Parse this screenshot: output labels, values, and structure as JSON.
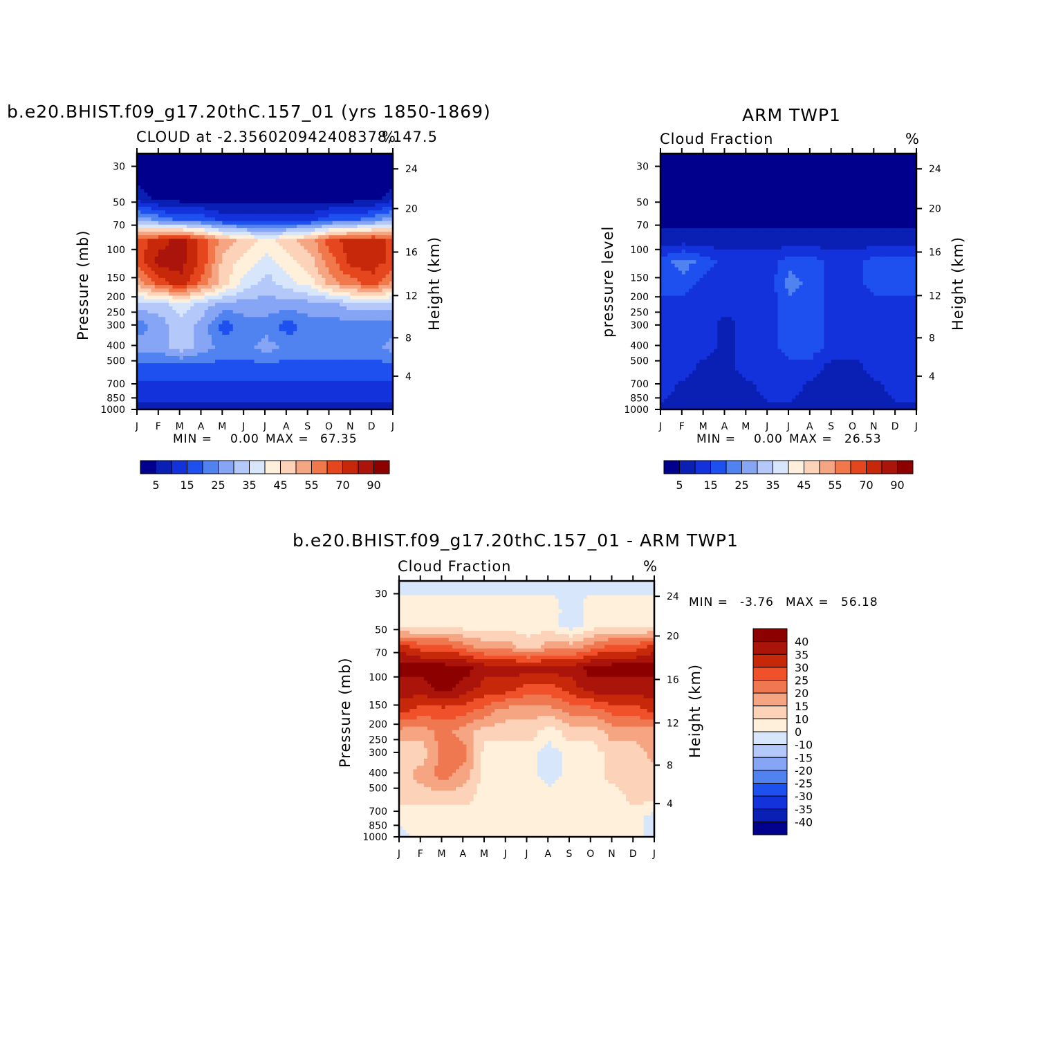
{
  "chart_data": [
    {
      "type": "heatmap",
      "panel": "model",
      "title": "b.e20.BHIST.f09_g17.20thC.157_01 (yrs 1850-1869)",
      "subtitle_left": "CLOUD at -2.356020942408378,147.5",
      "units": "%",
      "ylabel": "Pressure (mb)",
      "y2label": "Height (km)",
      "x_ticks": [
        "J",
        "F",
        "M",
        "A",
        "M",
        "J",
        "J",
        "A",
        "S",
        "O",
        "N",
        "D",
        "J"
      ],
      "y_ticks": [
        "30",
        "50",
        "70",
        "100",
        "150",
        "200",
        "250",
        "300",
        "400",
        "500",
        "700",
        "850",
        "1000"
      ],
      "y2_ticks": [
        "24",
        "20",
        "16",
        "12",
        "8",
        "4"
      ],
      "min_label": "MIN =",
      "min_value": "0.00",
      "max_label": "MAX =",
      "max_value": "67.35",
      "colorbar_labels": [
        "5",
        "15",
        "25",
        "35",
        "45",
        "55",
        "70",
        "90"
      ],
      "colorbar_colors": [
        "#00008c",
        "#0a1fb4",
        "#1432dc",
        "#1e50f0",
        "#5082f0",
        "#87a5f5",
        "#b4c8fa",
        "#d7e6fa",
        "#fff0dc",
        "#fcd2b9",
        "#f6a582",
        "#f0784b",
        "#e6461e",
        "#c8280a",
        "#aa140a",
        "#8c0000"
      ],
      "levels_grid": [
        [
          0,
          0,
          0,
          0,
          0,
          0,
          0,
          0,
          0,
          0,
          0,
          0,
          0
        ],
        [
          0,
          0,
          0,
          0,
          0,
          0,
          0,
          0,
          0,
          0,
          0,
          0,
          0
        ],
        [
          1,
          0,
          0,
          0,
          0,
          0,
          0,
          0,
          0,
          0,
          0,
          0,
          1
        ],
        [
          5,
          4,
          3,
          3,
          2,
          2,
          2,
          2,
          2,
          3,
          3,
          4,
          5
        ],
        [
          12,
          13,
          14,
          12,
          10,
          9,
          8,
          9,
          10,
          12,
          13,
          13,
          12
        ],
        [
          12,
          14,
          14,
          12,
          9,
          8,
          7,
          8,
          9,
          11,
          13,
          13,
          12
        ],
        [
          10,
          12,
          13,
          11,
          9,
          7,
          6,
          7,
          8,
          10,
          11,
          12,
          10
        ],
        [
          6,
          6,
          7,
          6,
          5,
          5,
          5,
          5,
          5,
          5,
          6,
          6,
          6
        ],
        [
          4,
          5,
          6,
          5,
          3,
          4,
          4,
          3,
          4,
          4,
          4,
          4,
          4
        ],
        [
          5,
          5,
          6,
          5,
          4,
          4,
          5,
          4,
          4,
          4,
          4,
          4,
          5
        ],
        [
          3,
          3,
          3,
          3,
          3,
          3,
          3,
          3,
          3,
          3,
          3,
          3,
          3
        ],
        [
          2,
          2,
          2,
          2,
          2,
          2,
          2,
          2,
          2,
          2,
          2,
          2,
          2
        ],
        [
          1,
          1,
          1,
          1,
          1,
          1,
          1,
          1,
          1,
          1,
          1,
          1,
          1
        ]
      ]
    },
    {
      "type": "heatmap",
      "panel": "obs",
      "title": "ARM TWP1",
      "subtitle_left": "Cloud Fraction",
      "units": "%",
      "ylabel": "pressure level",
      "y2label": "Height (km)",
      "x_ticks": [
        "J",
        "F",
        "M",
        "A",
        "M",
        "J",
        "J",
        "A",
        "S",
        "O",
        "N",
        "D",
        "J"
      ],
      "y_ticks": [
        "30",
        "50",
        "70",
        "100",
        "150",
        "200",
        "250",
        "300",
        "400",
        "500",
        "700",
        "850",
        "1000"
      ],
      "y2_ticks": [
        "24",
        "20",
        "16",
        "12",
        "8",
        "4"
      ],
      "min_label": "MIN =",
      "min_value": "0.00",
      "max_label": "MAX =",
      "max_value": "26.53",
      "colorbar_labels": [
        "5",
        "15",
        "25",
        "35",
        "45",
        "55",
        "70",
        "90"
      ],
      "colorbar_colors": [
        "#00008c",
        "#0a1fb4",
        "#1432dc",
        "#1e50f0",
        "#5082f0",
        "#87a5f5",
        "#b4c8fa",
        "#d7e6fa",
        "#fff0dc",
        "#fcd2b9",
        "#f6a582",
        "#f0784b",
        "#e6461e",
        "#c8280a",
        "#aa140a",
        "#8c0000"
      ],
      "levels_grid": [
        [
          0,
          0,
          0,
          0,
          0,
          0,
          0,
          0,
          0,
          0,
          0,
          0,
          0
        ],
        [
          0,
          0,
          0,
          0,
          0,
          0,
          0,
          0,
          0,
          0,
          0,
          0,
          0
        ],
        [
          0,
          0,
          0,
          0,
          0,
          0,
          0,
          0,
          0,
          0,
          0,
          0,
          0
        ],
        [
          0,
          0,
          0,
          0,
          0,
          0,
          0,
          0,
          0,
          0,
          0,
          0,
          0
        ],
        [
          1,
          1,
          1,
          1,
          1,
          1,
          1,
          1,
          1,
          1,
          1,
          1,
          1
        ],
        [
          3,
          4,
          3,
          2,
          2,
          2,
          3,
          3,
          2,
          2,
          3,
          3,
          3
        ],
        [
          3,
          3,
          2,
          2,
          2,
          2,
          4,
          3,
          2,
          2,
          3,
          3,
          3
        ],
        [
          2,
          2,
          2,
          2,
          2,
          2,
          3,
          3,
          2,
          2,
          2,
          2,
          2
        ],
        [
          2,
          2,
          2,
          1,
          2,
          2,
          3,
          3,
          2,
          2,
          2,
          2,
          2
        ],
        [
          2,
          2,
          2,
          1,
          2,
          2,
          3,
          3,
          2,
          2,
          2,
          2,
          2
        ],
        [
          2,
          2,
          1,
          1,
          2,
          2,
          2,
          2,
          1,
          1,
          2,
          2,
          2
        ],
        [
          2,
          1,
          1,
          1,
          1,
          2,
          2,
          1,
          1,
          1,
          1,
          2,
          2
        ],
        [
          1,
          1,
          1,
          1,
          1,
          1,
          1,
          1,
          1,
          1,
          1,
          1,
          1
        ]
      ]
    },
    {
      "type": "heatmap",
      "panel": "difference",
      "title": "b.e20.BHIST.f09_g17.20thC.157_01 - ARM TWP1",
      "subtitle_left": "Cloud Fraction",
      "units": "%",
      "ylabel": "Pressure (mb)",
      "y2label": "Height (km)",
      "x_ticks": [
        "J",
        "F",
        "M",
        "A",
        "M",
        "J",
        "J",
        "A",
        "S",
        "O",
        "N",
        "D",
        "J"
      ],
      "y_ticks": [
        "30",
        "50",
        "70",
        "100",
        "150",
        "200",
        "250",
        "300",
        "400",
        "500",
        "700",
        "850",
        "1000"
      ],
      "y2_ticks": [
        "24",
        "20",
        "16",
        "12",
        "8",
        "4"
      ],
      "min_label": "MIN =",
      "min_value": "-3.76",
      "max_label": "MAX =",
      "max_value": "56.18",
      "colorbar_labels": [
        "40",
        "35",
        "30",
        "25",
        "20",
        "15",
        "10",
        "0",
        "-10",
        "-15",
        "-20",
        "-25",
        "-30",
        "-35",
        "-40"
      ],
      "colorbar_colors": [
        "#8c0000",
        "#aa140a",
        "#c8280a",
        "#f0502a",
        "#f07850",
        "#f6a582",
        "#fcd2b9",
        "#fff0dc",
        "#d7e6fa",
        "#b4c8fa",
        "#87a5f5",
        "#5082f0",
        "#1e50f0",
        "#1432dc",
        "#0a1fb4",
        "#00008c"
      ],
      "levels_grid": [
        [
          8,
          8,
          8,
          8,
          8,
          8,
          8,
          8,
          8,
          8,
          8,
          8,
          8
        ],
        [
          7,
          7,
          7,
          7,
          7,
          7,
          7,
          7,
          8,
          7,
          7,
          7,
          7
        ],
        [
          7,
          7,
          7,
          7,
          7,
          7,
          7,
          7,
          8,
          7,
          7,
          7,
          7
        ],
        [
          2,
          3,
          3,
          4,
          5,
          5,
          6,
          5,
          5,
          4,
          3,
          3,
          2
        ],
        [
          0,
          0,
          0,
          0,
          1,
          1,
          1,
          1,
          1,
          0,
          0,
          0,
          0
        ],
        [
          1,
          1,
          0,
          1,
          2,
          2,
          3,
          3,
          2,
          1,
          1,
          1,
          1
        ],
        [
          2,
          3,
          3,
          3,
          4,
          5,
          5,
          5,
          4,
          4,
          3,
          3,
          2
        ],
        [
          5,
          5,
          4,
          5,
          6,
          6,
          6,
          7,
          6,
          6,
          5,
          5,
          5
        ],
        [
          6,
          6,
          4,
          4,
          7,
          7,
          7,
          8,
          7,
          7,
          6,
          6,
          5
        ],
        [
          6,
          5,
          4,
          5,
          7,
          7,
          7,
          8,
          7,
          7,
          6,
          6,
          6
        ],
        [
          6,
          6,
          6,
          6,
          7,
          7,
          7,
          7,
          7,
          7,
          7,
          6,
          6
        ],
        [
          7,
          7,
          7,
          7,
          7,
          7,
          7,
          7,
          7,
          7,
          7,
          7,
          8
        ],
        [
          8,
          7,
          7,
          7,
          7,
          7,
          7,
          7,
          7,
          7,
          7,
          7,
          8
        ]
      ]
    }
  ]
}
